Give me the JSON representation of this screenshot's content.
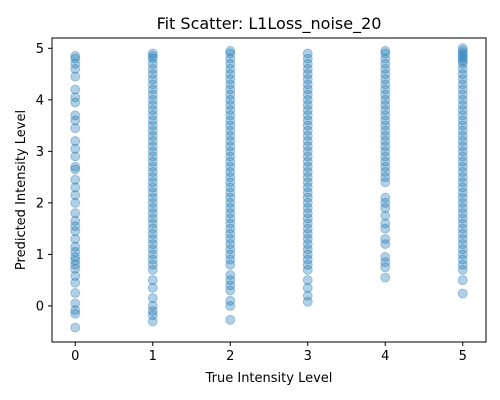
{
  "chart_data": {
    "type": "scatter",
    "title": "Fit Scatter: L1Loss_noise_20",
    "xlabel": "True Intensity Level",
    "ylabel": "Predicted Intensity Level",
    "xlim": [
      -0.3,
      5.3
    ],
    "ylim": [
      -0.7,
      5.2
    ],
    "xticks": [
      0,
      1,
      2,
      3,
      4,
      5
    ],
    "yticks": [
      0,
      1,
      2,
      3,
      4,
      5
    ],
    "grid": false,
    "marker_color": "#1f77b4",
    "marker_alpha": 0.35,
    "series": [
      {
        "x": 0,
        "y": [
          -0.42,
          -0.15,
          -0.08,
          0.05,
          0.25,
          0.45,
          0.58,
          0.72,
          0.8,
          0.88,
          0.95,
          1.05,
          1.15,
          1.3,
          1.45,
          1.55,
          1.65,
          1.8,
          2.0,
          2.15,
          2.3,
          2.45,
          2.65,
          2.7,
          2.9,
          3.05,
          3.2,
          3.45,
          3.6,
          3.7,
          3.95,
          4.05,
          4.2,
          4.45,
          4.6,
          4.7,
          4.8,
          4.85
        ]
      },
      {
        "x": 1,
        "y": [
          -0.3,
          -0.18,
          -0.1,
          0.0,
          0.15,
          0.35,
          0.5,
          0.7,
          0.8,
          0.9,
          1.0,
          1.1,
          1.2,
          1.3,
          1.4,
          1.5,
          1.6,
          1.7,
          1.8,
          1.9,
          2.0,
          2.1,
          2.2,
          2.3,
          2.4,
          2.5,
          2.6,
          2.7,
          2.8,
          2.9,
          3.0,
          3.1,
          3.2,
          3.3,
          3.4,
          3.5,
          3.6,
          3.7,
          3.8,
          3.9,
          4.0,
          4.1,
          4.2,
          4.3,
          4.4,
          4.5,
          4.6,
          4.7,
          4.8,
          4.85,
          4.9
        ]
      },
      {
        "x": 2,
        "y": [
          -0.27,
          0.0,
          0.1,
          0.3,
          0.4,
          0.5,
          0.6,
          0.8,
          0.9,
          1.0,
          1.1,
          1.2,
          1.3,
          1.4,
          1.5,
          1.6,
          1.7,
          1.8,
          1.9,
          2.0,
          2.1,
          2.2,
          2.3,
          2.4,
          2.5,
          2.6,
          2.7,
          2.8,
          2.9,
          3.0,
          3.1,
          3.2,
          3.3,
          3.4,
          3.5,
          3.6,
          3.7,
          3.8,
          3.9,
          4.0,
          4.1,
          4.2,
          4.3,
          4.4,
          4.5,
          4.6,
          4.7,
          4.8,
          4.9,
          4.95
        ]
      },
      {
        "x": 3,
        "y": [
          0.08,
          0.2,
          0.35,
          0.5,
          0.7,
          0.8,
          0.9,
          1.0,
          1.1,
          1.2,
          1.3,
          1.4,
          1.5,
          1.6,
          1.7,
          1.8,
          1.9,
          2.0,
          2.1,
          2.2,
          2.3,
          2.4,
          2.5,
          2.6,
          2.7,
          2.8,
          2.9,
          3.0,
          3.1,
          3.2,
          3.3,
          3.4,
          3.5,
          3.6,
          3.7,
          3.8,
          3.9,
          4.0,
          4.1,
          4.2,
          4.3,
          4.4,
          4.5,
          4.6,
          4.7,
          4.8,
          4.9
        ]
      },
      {
        "x": 4,
        "y": [
          0.55,
          0.75,
          0.85,
          0.95,
          1.2,
          1.3,
          1.5,
          1.6,
          1.75,
          1.9,
          2.0,
          2.1,
          2.4,
          2.5,
          2.6,
          2.7,
          2.8,
          2.9,
          3.0,
          3.1,
          3.2,
          3.3,
          3.4,
          3.5,
          3.6,
          3.7,
          3.8,
          3.9,
          4.0,
          4.1,
          4.2,
          4.3,
          4.4,
          4.5,
          4.6,
          4.7,
          4.8,
          4.9,
          4.95
        ]
      },
      {
        "x": 5,
        "y": [
          0.24,
          0.5,
          0.7,
          0.8,
          0.9,
          1.0,
          1.1,
          1.2,
          1.3,
          1.4,
          1.5,
          1.6,
          1.7,
          1.8,
          1.9,
          2.0,
          2.1,
          2.2,
          2.3,
          2.4,
          2.5,
          2.6,
          2.7,
          2.8,
          2.9,
          3.0,
          3.1,
          3.2,
          3.3,
          3.4,
          3.5,
          3.6,
          3.7,
          3.8,
          3.9,
          4.0,
          4.1,
          4.2,
          4.3,
          4.4,
          4.5,
          4.6,
          4.7,
          4.75,
          4.8,
          4.85,
          4.9,
          4.95,
          5.0
        ]
      }
    ]
  }
}
